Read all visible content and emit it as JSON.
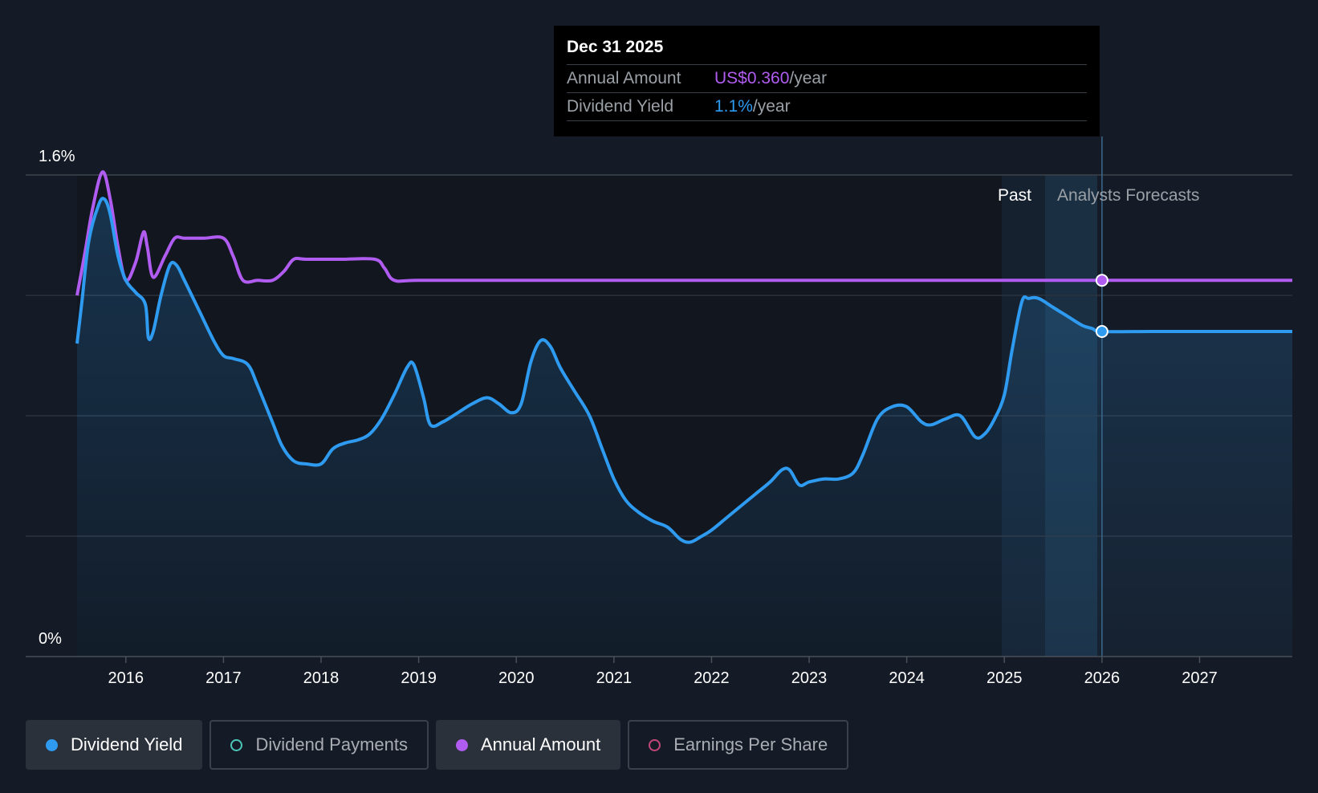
{
  "tooltip": {
    "date": "Dec 31 2025",
    "annual_amount_label": "Annual Amount",
    "annual_amount_value": "US$0.360",
    "annual_amount_unit": "/year",
    "dividend_yield_label": "Dividend Yield",
    "dividend_yield_value": "1.1%",
    "dividend_yield_unit": "/year"
  },
  "legend": [
    {
      "label": "Dividend Yield",
      "active": true,
      "marker": "filled",
      "color": "#2e9bf0"
    },
    {
      "label": "Dividend Payments",
      "active": false,
      "marker": "ring",
      "color": "#4dc6b8"
    },
    {
      "label": "Annual Amount",
      "active": true,
      "marker": "filled",
      "color": "#b15cf0"
    },
    {
      "label": "Earnings Per Share",
      "active": false,
      "marker": "ring",
      "color": "#c2467a"
    }
  ],
  "chart_data": {
    "type": "line",
    "title": "",
    "xlabel": "",
    "ylabel": "",
    "ylim": [
      0,
      1.6
    ],
    "y_tick_labels": [
      "0%",
      "1.6%"
    ],
    "xlim": [
      2015.5,
      2027.95
    ],
    "x_tick_values": [
      2016,
      2017,
      2018,
      2019,
      2020,
      2021,
      2022,
      2023,
      2024,
      2025,
      2026,
      2027
    ],
    "x_tick_labels": [
      "2016",
      "2017",
      "2018",
      "2019",
      "2020",
      "2021",
      "2022",
      "2023",
      "2024",
      "2025",
      "2026",
      "2027"
    ],
    "regions": {
      "past_label": "Past",
      "forecast_label": "Analysts Forecasts",
      "past_end": 2026.0
    },
    "highlight_x": 2026.0,
    "grid": true,
    "colors": {
      "dividend_yield": "#2e9bf0",
      "annual_amount": "#b15cf0",
      "background": "#151b26"
    },
    "series": [
      {
        "name": "Dividend Yield",
        "axis": "percent",
        "points": [
          [
            2015.5,
            1.04
          ],
          [
            2015.55,
            1.18
          ],
          [
            2015.62,
            1.38
          ],
          [
            2015.72,
            1.5
          ],
          [
            2015.78,
            1.52
          ],
          [
            2015.84,
            1.47
          ],
          [
            2015.92,
            1.33
          ],
          [
            2016.0,
            1.25
          ],
          [
            2016.1,
            1.21
          ],
          [
            2016.2,
            1.17
          ],
          [
            2016.23,
            1.06
          ],
          [
            2016.28,
            1.08
          ],
          [
            2016.36,
            1.2
          ],
          [
            2016.45,
            1.3
          ],
          [
            2016.52,
            1.3
          ],
          [
            2016.6,
            1.25
          ],
          [
            2016.75,
            1.15
          ],
          [
            2016.9,
            1.05
          ],
          [
            2017.0,
            1.0
          ],
          [
            2017.1,
            0.99
          ],
          [
            2017.25,
            0.97
          ],
          [
            2017.35,
            0.9
          ],
          [
            2017.5,
            0.78
          ],
          [
            2017.6,
            0.7
          ],
          [
            2017.72,
            0.65
          ],
          [
            2017.85,
            0.64
          ],
          [
            2018.0,
            0.64
          ],
          [
            2018.12,
            0.69
          ],
          [
            2018.25,
            0.71
          ],
          [
            2018.38,
            0.72
          ],
          [
            2018.5,
            0.74
          ],
          [
            2018.62,
            0.79
          ],
          [
            2018.75,
            0.87
          ],
          [
            2018.88,
            0.96
          ],
          [
            2018.95,
            0.97
          ],
          [
            2019.05,
            0.86
          ],
          [
            2019.12,
            0.77
          ],
          [
            2019.25,
            0.78
          ],
          [
            2019.4,
            0.81
          ],
          [
            2019.55,
            0.84
          ],
          [
            2019.7,
            0.86
          ],
          [
            2019.82,
            0.84
          ],
          [
            2019.95,
            0.81
          ],
          [
            2020.05,
            0.84
          ],
          [
            2020.15,
            0.98
          ],
          [
            2020.25,
            1.05
          ],
          [
            2020.35,
            1.03
          ],
          [
            2020.45,
            0.96
          ],
          [
            2020.6,
            0.88
          ],
          [
            2020.75,
            0.8
          ],
          [
            2020.88,
            0.69
          ],
          [
            2021.0,
            0.59
          ],
          [
            2021.12,
            0.52
          ],
          [
            2021.25,
            0.48
          ],
          [
            2021.4,
            0.45
          ],
          [
            2021.55,
            0.43
          ],
          [
            2021.68,
            0.39
          ],
          [
            2021.78,
            0.38
          ],
          [
            2021.9,
            0.4
          ],
          [
            2022.0,
            0.42
          ],
          [
            2022.15,
            0.46
          ],
          [
            2022.3,
            0.5
          ],
          [
            2022.45,
            0.54
          ],
          [
            2022.6,
            0.58
          ],
          [
            2022.72,
            0.62
          ],
          [
            2022.8,
            0.62
          ],
          [
            2022.9,
            0.57
          ],
          [
            2023.0,
            0.58
          ],
          [
            2023.15,
            0.59
          ],
          [
            2023.3,
            0.59
          ],
          [
            2023.45,
            0.61
          ],
          [
            2023.55,
            0.67
          ],
          [
            2023.7,
            0.79
          ],
          [
            2023.85,
            0.83
          ],
          [
            2024.0,
            0.83
          ],
          [
            2024.15,
            0.78
          ],
          [
            2024.25,
            0.77
          ],
          [
            2024.4,
            0.79
          ],
          [
            2024.55,
            0.8
          ],
          [
            2024.7,
            0.73
          ],
          [
            2024.8,
            0.74
          ],
          [
            2024.9,
            0.79
          ],
          [
            2025.0,
            0.87
          ],
          [
            2025.08,
            1.02
          ],
          [
            2025.18,
            1.18
          ],
          [
            2025.25,
            1.19
          ],
          [
            2025.35,
            1.19
          ],
          [
            2025.5,
            1.16
          ],
          [
            2025.65,
            1.13
          ],
          [
            2025.8,
            1.1
          ],
          [
            2025.9,
            1.09
          ],
          [
            2026.0,
            1.08
          ],
          [
            2026.5,
            1.08
          ],
          [
            2027.0,
            1.08
          ],
          [
            2027.5,
            1.08
          ],
          [
            2027.95,
            1.08
          ]
        ]
      },
      {
        "name": "Annual Amount",
        "axis": "amount",
        "points": [
          [
            2015.5,
            1.2
          ],
          [
            2015.58,
            1.34
          ],
          [
            2015.66,
            1.49
          ],
          [
            2015.76,
            1.61
          ],
          [
            2015.84,
            1.52
          ],
          [
            2015.92,
            1.36
          ],
          [
            2016.0,
            1.25
          ],
          [
            2016.1,
            1.31
          ],
          [
            2016.18,
            1.41
          ],
          [
            2016.22,
            1.36
          ],
          [
            2016.28,
            1.26
          ],
          [
            2016.4,
            1.33
          ],
          [
            2016.5,
            1.39
          ],
          [
            2016.6,
            1.39
          ],
          [
            2016.8,
            1.39
          ],
          [
            2017.0,
            1.39
          ],
          [
            2017.1,
            1.33
          ],
          [
            2017.2,
            1.25
          ],
          [
            2017.35,
            1.25
          ],
          [
            2017.5,
            1.25
          ],
          [
            2017.62,
            1.28
          ],
          [
            2017.72,
            1.32
          ],
          [
            2017.85,
            1.32
          ],
          [
            2018.2,
            1.32
          ],
          [
            2018.55,
            1.32
          ],
          [
            2018.65,
            1.29
          ],
          [
            2018.75,
            1.25
          ],
          [
            2019.0,
            1.25
          ],
          [
            2020.0,
            1.25
          ],
          [
            2021.0,
            1.25
          ],
          [
            2022.0,
            1.25
          ],
          [
            2023.0,
            1.25
          ],
          [
            2024.0,
            1.25
          ],
          [
            2025.0,
            1.25
          ],
          [
            2026.0,
            1.25
          ],
          [
            2027.0,
            1.25
          ],
          [
            2027.95,
            1.25
          ]
        ]
      }
    ]
  }
}
